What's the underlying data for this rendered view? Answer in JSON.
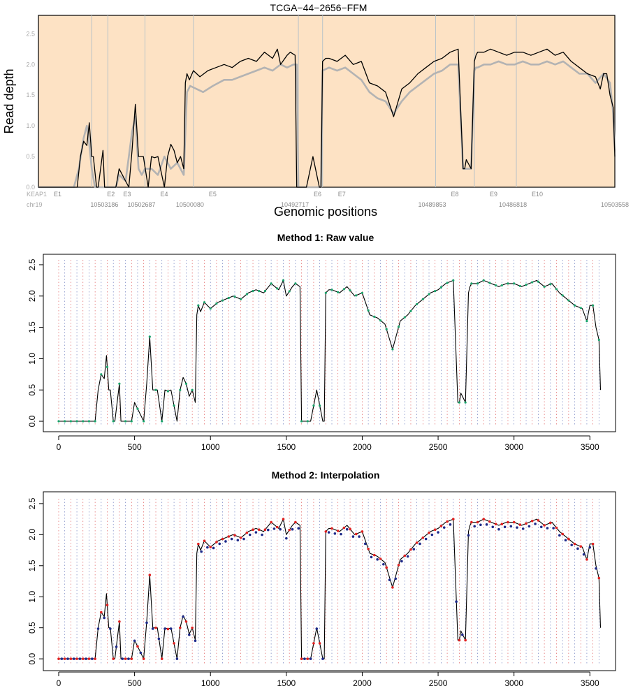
{
  "figure": {
    "panels": [
      "top",
      "method1",
      "method2"
    ]
  },
  "chart_data": [
    {
      "type": "line",
      "title": "TCGA−44−2656−FFM",
      "xlabel": "Genomic positions",
      "ylabel": "Read depth",
      "ylim": [
        0,
        2.8
      ],
      "yticks": [
        "0.0",
        "0.5",
        "1.0",
        "1.5",
        "2.0",
        "2.5"
      ],
      "gene_label": "KEAP1",
      "chrom_label": "chr19",
      "background_color": "#fde2c4",
      "exons": [
        {
          "name": "E1",
          "start": 0,
          "end": 330
        },
        {
          "name": "E2",
          "start": 330,
          "end": 430
        },
        {
          "name": "E3",
          "start": 430,
          "end": 660
        },
        {
          "name": "E4",
          "start": 660,
          "end": 960
        },
        {
          "name": "E5",
          "start": 960,
          "end": 1610
        },
        {
          "name": "E6",
          "start": 1610,
          "end": 1760
        },
        {
          "name": "E7",
          "start": 1760,
          "end": 2460
        },
        {
          "name": "E8",
          "start": 2460,
          "end": 2700
        },
        {
          "name": "E9",
          "start": 2700,
          "end": 2960
        },
        {
          "name": "E10",
          "start": 2960,
          "end": 3570
        }
      ],
      "position_labels": [
        {
          "x": 430,
          "label": "10503186"
        },
        {
          "x": 660,
          "label": "10502687"
        },
        {
          "x": 960,
          "label": "10500080"
        },
        {
          "x": 1610,
          "label": "10492717"
        },
        {
          "x": 2460,
          "label": "10489853"
        },
        {
          "x": 2960,
          "label": "10486818"
        },
        {
          "x": 3570,
          "label": "10503558"
        }
      ],
      "series": [
        {
          "color": "#000000",
          "x": [
            0,
            240,
            260,
            280,
            300,
            315,
            330,
            340,
            360,
            370,
            400,
            410,
            440,
            480,
            500,
            560,
            580,
            600,
            620,
            650,
            680,
            700,
            720,
            740,
            780,
            800,
            820,
            840,
            860,
            880,
            900,
            910,
            920,
            935,
            960,
            1000,
            1050,
            1100,
            1150,
            1200,
            1250,
            1300,
            1350,
            1400,
            1450,
            1480,
            1500,
            1540,
            1560,
            1590,
            1600,
            1610,
            1620,
            1640,
            1660,
            1700,
            1740,
            1750,
            1760,
            1780,
            1800,
            1850,
            1900,
            1950,
            2000,
            2050,
            2100,
            2150,
            2200,
            2250,
            2300,
            2350,
            2400,
            2450,
            2500,
            2550,
            2600,
            2630,
            2640,
            2650,
            2680,
            2700,
            2710,
            2720,
            2760,
            2800,
            2850,
            2900,
            2950,
            3000,
            3050,
            3100,
            3150,
            3200,
            3250,
            3300,
            3350,
            3400,
            3450,
            3480,
            3500,
            3520,
            3540,
            3560,
            3570
          ],
          "y": [
            0,
            0,
            0.5,
            0.75,
            0.68,
            1.05,
            0.5,
            0.5,
            0,
            0,
            0.6,
            0,
            0,
            0,
            0.3,
            0,
            0.6,
            1.35,
            0.5,
            0.5,
            0,
            0.5,
            0.48,
            0.5,
            0,
            0.5,
            0.7,
            0.6,
            0.4,
            0.5,
            0.3,
            1.7,
            1.85,
            1.75,
            1.9,
            1.8,
            1.9,
            1.95,
            2.0,
            1.95,
            2.05,
            2.1,
            2.05,
            2.2,
            2.1,
            2.25,
            2.0,
            2.15,
            2.2,
            2.15,
            0,
            0,
            0,
            0,
            0,
            0.5,
            0,
            0,
            2.05,
            2.1,
            2.1,
            2.05,
            2.15,
            2.0,
            2.05,
            1.7,
            1.65,
            1.55,
            1.15,
            1.6,
            1.7,
            1.85,
            1.95,
            2.05,
            2.1,
            2.2,
            2.25,
            0.3,
            0.3,
            0.45,
            0.3,
            2.05,
            2.15,
            2.2,
            2.2,
            2.25,
            2.2,
            2.15,
            2.2,
            2.2,
            2.15,
            2.2,
            2.25,
            2.15,
            2.2,
            2.05,
            1.95,
            1.85,
            1.8,
            1.6,
            1.85,
            1.85,
            1.5,
            1.3,
            0.5
          ]
        },
        {
          "color": "#b3b3b3",
          "x": [
            0,
            220,
            250,
            280,
            300,
            315,
            330,
            350,
            400,
            430,
            460,
            480,
            500,
            540,
            580,
            600,
            620,
            640,
            660,
            700,
            740,
            780,
            820,
            860,
            900,
            920,
            940,
            980,
            1020,
            1080,
            1150,
            1200,
            1250,
            1300,
            1350,
            1400,
            1450,
            1500,
            1540,
            1580,
            1600,
            1610,
            1660,
            1740,
            1750,
            1760,
            1800,
            1850,
            1900,
            1950,
            2000,
            2050,
            2100,
            2150,
            2200,
            2250,
            2300,
            2350,
            2400,
            2450,
            2500,
            2550,
            2600,
            2630,
            2640,
            2680,
            2700,
            2710,
            2720,
            2760,
            2800,
            2850,
            2900,
            2950,
            3000,
            3050,
            3100,
            3150,
            3200,
            3250,
            3300,
            3350,
            3400,
            3450,
            3500,
            3540,
            3560,
            3570
          ],
          "y": [
            0,
            0,
            0.3,
            0.8,
            1.0,
            0.7,
            0.3,
            0,
            0,
            0,
            0,
            0,
            0.2,
            0.1,
            0.9,
            1.15,
            0.3,
            0.2,
            0.3,
            0.3,
            0.2,
            0.5,
            0.3,
            0.4,
            0.2,
            1.55,
            1.65,
            1.6,
            1.55,
            1.65,
            1.75,
            1.75,
            1.8,
            1.85,
            1.9,
            1.95,
            1.9,
            2.0,
            1.95,
            2.0,
            2.0,
            0,
            0,
            0,
            0,
            1.9,
            1.95,
            1.9,
            1.95,
            1.85,
            1.75,
            1.55,
            1.45,
            1.4,
            1.2,
            1.4,
            1.55,
            1.65,
            1.75,
            1.85,
            1.9,
            2.0,
            2.0,
            0.3,
            0.3,
            0.3,
            1.9,
            1.95,
            1.95,
            2.0,
            2.0,
            2.05,
            2.0,
            2.0,
            2.05,
            2.0,
            2.0,
            2.05,
            2.0,
            2.05,
            1.95,
            1.85,
            1.85,
            1.7,
            1.85,
            1.7,
            1.2,
            0.6
          ]
        }
      ]
    },
    {
      "type": "line",
      "title": "Method 1: Raw value",
      "xlim": [
        0,
        3600
      ],
      "ylim": [
        0,
        2.6
      ],
      "xticks": [
        "0",
        "500",
        "1000",
        "1500",
        "2000",
        "2500",
        "3000",
        "3500"
      ],
      "yticks": [
        "0.0",
        "0.5",
        "1.0",
        "1.5",
        "2.0",
        "2.5"
      ],
      "marker_color": "#1aa36b",
      "grid_color_red": "#e06060",
      "grid_color_blue": "#6f7fbf"
    },
    {
      "type": "line",
      "title": "Method 2: Interpolation",
      "xlim": [
        0,
        3600
      ],
      "ylim": [
        0,
        2.6
      ],
      "xticks": [
        "0",
        "500",
        "1000",
        "1500",
        "2000",
        "2500",
        "3000",
        "3500"
      ],
      "yticks": [
        "0.0",
        "0.5",
        "1.0",
        "1.5",
        "2.0",
        "2.5"
      ],
      "marker_color_red": "#e02020",
      "marker_color_blue": "#1e2a8a"
    }
  ]
}
